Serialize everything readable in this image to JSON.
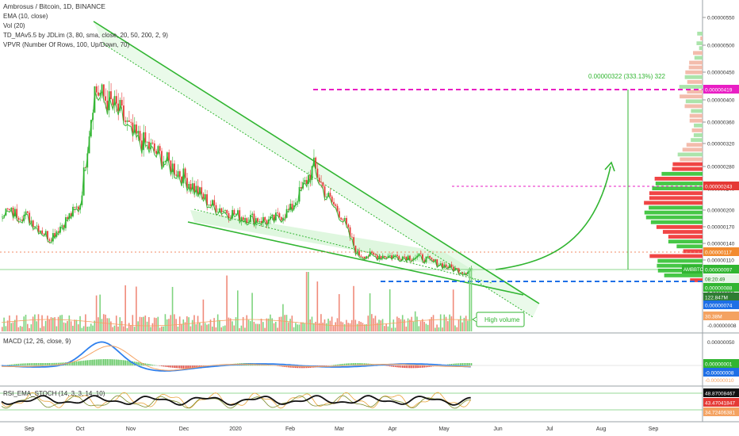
{
  "header": {
    "title": "Ambrosus / Bitcoin, 1D, BINANCE",
    "indicators": [
      "EMA (10, close)",
      "Vol (20)",
      "TD_MAv5.5 by JDLim (3, 80, sma, close, 20, 50, 200, 2, 9)",
      "VPVR (Number Of Rows, 100, Up/Down, 70)"
    ]
  },
  "price_axis": {
    "ticks": [
      "0.00000550",
      "0.00000500",
      "0.00000450",
      "0.00000400",
      "0.00000360",
      "0.00000320",
      "0.00000280",
      "0.00000240",
      "0.00000200",
      "0.00000170",
      "0.00000140",
      "0.00000110",
      "0.00000090",
      "0.00000050"
    ],
    "badges": {
      "target": "0.00000419",
      "level_mid": "0.00000243",
      "level_res": "0.00000117",
      "symbol": "AMBBTC",
      "last": "0.00000097",
      "countdown": "08:20:49",
      "support": "0.00000088",
      "volume": "122.847M",
      "low": "0.00000074",
      "vol_ma": "30.38M",
      "bottom": "-0.00000008"
    }
  },
  "annotations": {
    "measure": "0.00000322 (333.13%) 322",
    "note": "High volume"
  },
  "macd": {
    "label": "MACD (12, 26, close, 9)",
    "ticks": [
      "0.00000050"
    ],
    "badges": [
      "0.00000001",
      "-0.00000008",
      "-0.00000010"
    ]
  },
  "rsi": {
    "label": "RSI_EMA_STOCH (14, 3, 3, 14, 10)",
    "badges": [
      "48.87008467",
      "43.47041847",
      "34.72406381"
    ]
  },
  "time_axis": [
    "Sep",
    "Oct",
    "Nov",
    "Dec",
    "2020",
    "Feb",
    "Mar",
    "Apr",
    "May",
    "Jun",
    "Jul",
    "Aug",
    "Sep"
  ],
  "colors": {
    "up": "#26a69a",
    "down": "#ef5350",
    "green": "#31b531",
    "red": "#e53935",
    "ema": "#31b531",
    "magenta": "#e91ec4",
    "blue": "#1e6fe6",
    "macd": "#2f80ed",
    "signal": "#f4a261"
  },
  "chart_data": {
    "type": "candlestick",
    "title": "Ambrosus / Bitcoin, 1D, BINANCE",
    "x": [
      "2019-08-25",
      "2019-09-01",
      "2019-09-15",
      "2019-10-01",
      "2019-10-07",
      "2019-10-15",
      "2019-11-01",
      "2019-11-15",
      "2019-12-01",
      "2019-12-15",
      "2020-01-01",
      "2020-01-15",
      "2020-02-01",
      "2020-02-08",
      "2020-02-15",
      "2020-03-01",
      "2020-03-12",
      "2020-03-20",
      "2020-04-01",
      "2020-04-15",
      "2020-05-01",
      "2020-05-10",
      "2020-05-16"
    ],
    "close": [
      2e-06,
      1.9e-06,
      1.5e-06,
      2.1e-06,
      4.2e-06,
      3.8e-06,
      3.4e-06,
      3e-06,
      2.6e-06,
      2.1e-06,
      1.9e-06,
      1.8e-06,
      2e-06,
      2.8e-06,
      2.3e-06,
      1.9e-06,
      1.2e-06,
      1.18e-06,
      1.17e-06,
      1.15e-06,
      1e-06,
      8.8e-07,
      9.7e-07
    ],
    "horizontal_levels": [
      4.19e-06,
      2.43e-06,
      1.17e-06,
      8.8e-07
    ],
    "target_gain": "0.00000322 (333.13%)",
    "ylim": [
      -8e-08,
      5.6e-06
    ]
  }
}
